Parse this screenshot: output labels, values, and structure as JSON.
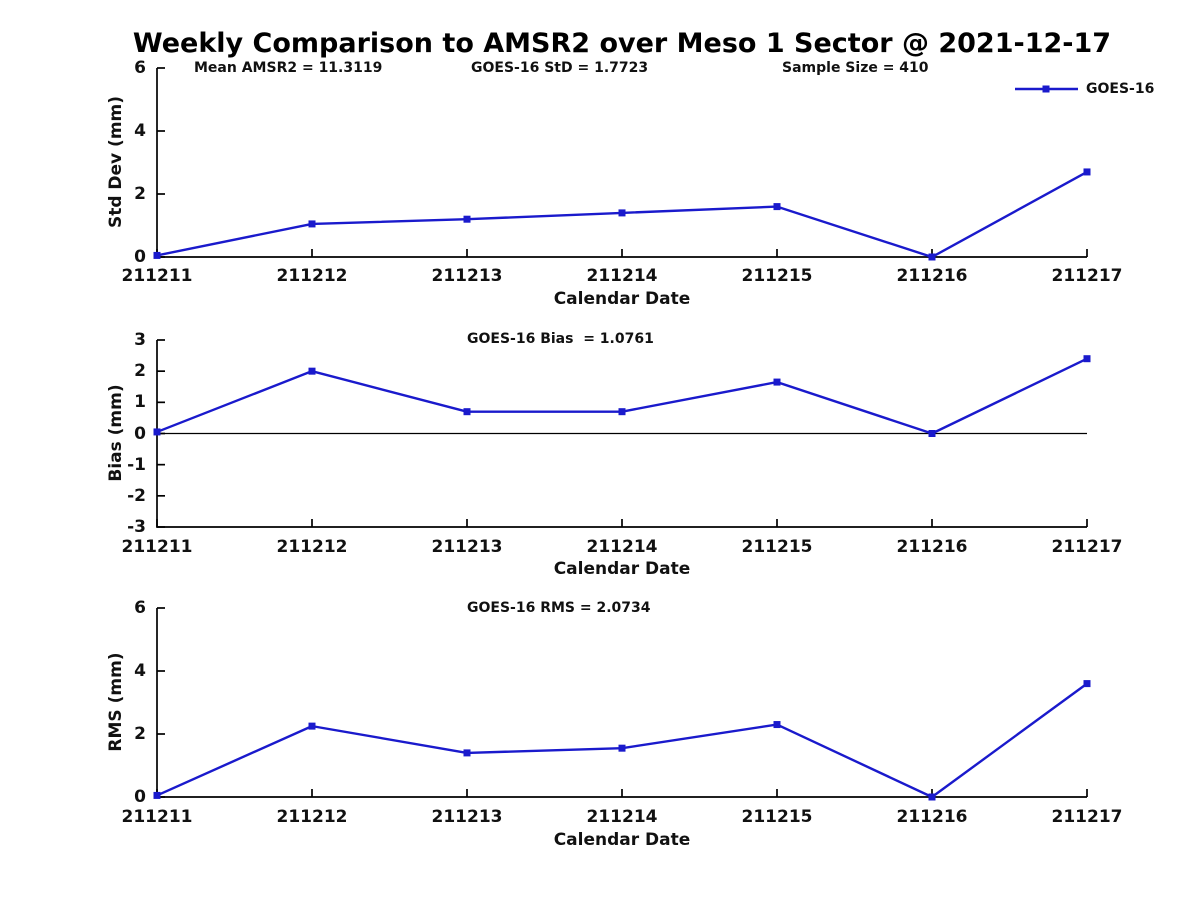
{
  "title": "Weekly Comparison to AMSR2 over Meso 1 Sector @ 2021-12-17",
  "legend": {
    "label": "GOES-16"
  },
  "colors": {
    "line": "#1a1acc",
    "axis": "#000000",
    "zero_line": "#000000"
  },
  "chart_data": [
    {
      "type": "line",
      "id": "stddev",
      "ylabel": "Std Dev (mm)",
      "xlabel": "Calendar Date",
      "ylim": [
        0,
        6
      ],
      "yticks": [
        0,
        2,
        4,
        6
      ],
      "grid": false,
      "legend_position": "top-right-outside",
      "categories": [
        "211211",
        "211212",
        "211213",
        "211214",
        "211215",
        "211216",
        "211217"
      ],
      "series": [
        {
          "name": "GOES-16",
          "values": [
            0.05,
            1.05,
            1.2,
            1.4,
            1.6,
            0.0,
            2.7
          ]
        }
      ],
      "annotations": [
        "Mean AMSR2 = 11.3119",
        "GOES-16 StD = 1.7723",
        "Sample Size = 410"
      ]
    },
    {
      "type": "line",
      "id": "bias",
      "ylabel": "Bias (mm)",
      "xlabel": "Calendar Date",
      "ylim": [
        -3,
        3
      ],
      "yticks": [
        -3,
        -2,
        -1,
        0,
        1,
        2,
        3
      ],
      "zero_line": true,
      "grid": false,
      "categories": [
        "211211",
        "211212",
        "211213",
        "211214",
        "211215",
        "211216",
        "211217"
      ],
      "series": [
        {
          "name": "GOES-16",
          "values": [
            0.05,
            2.0,
            0.7,
            0.7,
            1.65,
            0.0,
            2.4
          ]
        }
      ],
      "annotations": [
        "GOES-16 Bias  = 1.0761"
      ]
    },
    {
      "type": "line",
      "id": "rms",
      "ylabel": "RMS (mm)",
      "xlabel": "Calendar Date",
      "ylim": [
        0,
        6
      ],
      "yticks": [
        0,
        2,
        4,
        6
      ],
      "grid": false,
      "categories": [
        "211211",
        "211212",
        "211213",
        "211214",
        "211215",
        "211216",
        "211217"
      ],
      "series": [
        {
          "name": "GOES-16",
          "values": [
            0.05,
            2.25,
            1.4,
            1.55,
            2.3,
            0.0,
            3.6
          ]
        }
      ],
      "annotations": [
        "GOES-16 RMS = 2.0734"
      ]
    }
  ]
}
